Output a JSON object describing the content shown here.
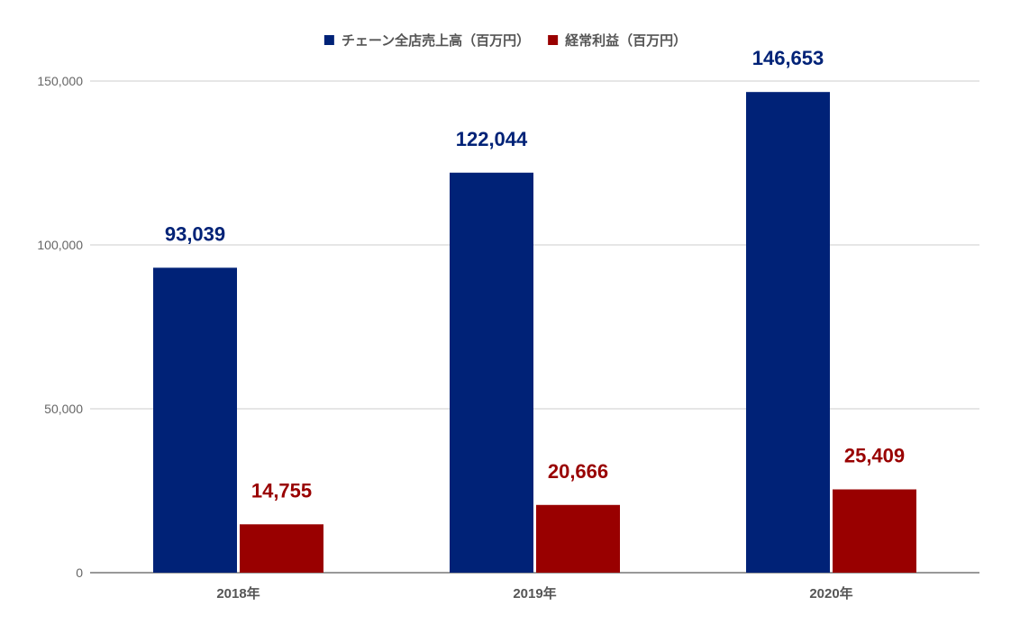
{
  "chart_data": {
    "type": "bar",
    "categories": [
      "2018年",
      "2019年",
      "2020年"
    ],
    "series": [
      {
        "name": "チェーン全店売上高（百万円）",
        "values": [
          93039,
          122044,
          146653
        ],
        "labels": [
          "93,039",
          "122,044",
          "146,653"
        ],
        "color": "#002277"
      },
      {
        "name": "経常利益（百万円）",
        "values": [
          14755,
          20666,
          25409
        ],
        "labels": [
          "14,755",
          "20,666",
          "25,409"
        ],
        "color": "#990000"
      }
    ],
    "yticks": [
      "0",
      "50,000",
      "100,000",
      "150,000"
    ],
    "ytick_values": [
      0,
      50000,
      100000,
      150000
    ],
    "ylim": [
      0,
      150000
    ],
    "grid": true,
    "legend_position": "top-center",
    "title": "",
    "xlabel": "",
    "ylabel": ""
  }
}
